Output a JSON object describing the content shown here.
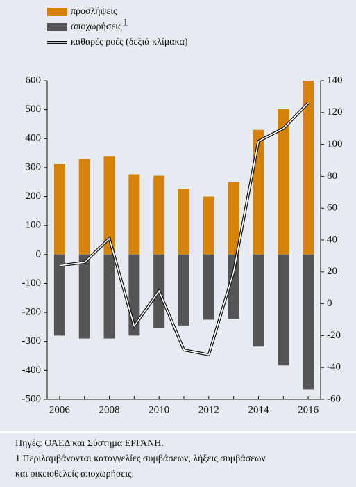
{
  "chart_data": {
    "type": "bar",
    "categories": [
      "2006",
      null,
      "2008",
      null,
      "2010",
      null,
      "2012",
      null,
      "2014",
      null,
      "2016"
    ],
    "series": [
      {
        "name": "προσλήψεις",
        "color": "#d4820a",
        "values": [
          312,
          330,
          340,
          277,
          272,
          227,
          200,
          250,
          430,
          502,
          600
        ]
      },
      {
        "name": "αποχωρήσεις",
        "note_mark": "1",
        "color": "#555557",
        "values": [
          -280,
          -290,
          -290,
          -280,
          -255,
          -245,
          -225,
          -222,
          -318,
          -383,
          -465
        ]
      },
      {
        "name": "καθαρές ροές (δεξιά κλίμακα)",
        "type": "line",
        "axis": "y2",
        "color": "#111111",
        "values": [
          24,
          26,
          41,
          -14,
          8,
          -29,
          -32,
          20,
          102,
          110,
          126
        ]
      }
    ],
    "ylim": [
      -500,
      600
    ],
    "yticks": [
      -500,
      -400,
      -300,
      -200,
      -100,
      0,
      100,
      200,
      300,
      400,
      500,
      600
    ],
    "y2lim": [
      -60,
      140
    ],
    "y2ticks": [
      -60,
      -40,
      -20,
      0,
      20,
      40,
      60,
      80,
      100,
      120,
      140
    ],
    "notes": [
      "Πηγές:  ΟΑΕΔ και Σύστημα ΕΡΓΑΝΗ.",
      "1 Περιλαμβάνονται καταγγελίες συμβάσεων, λήξεις συμβάσεων",
      "και οικειοθελείς αποχωρήσεις."
    ]
  }
}
